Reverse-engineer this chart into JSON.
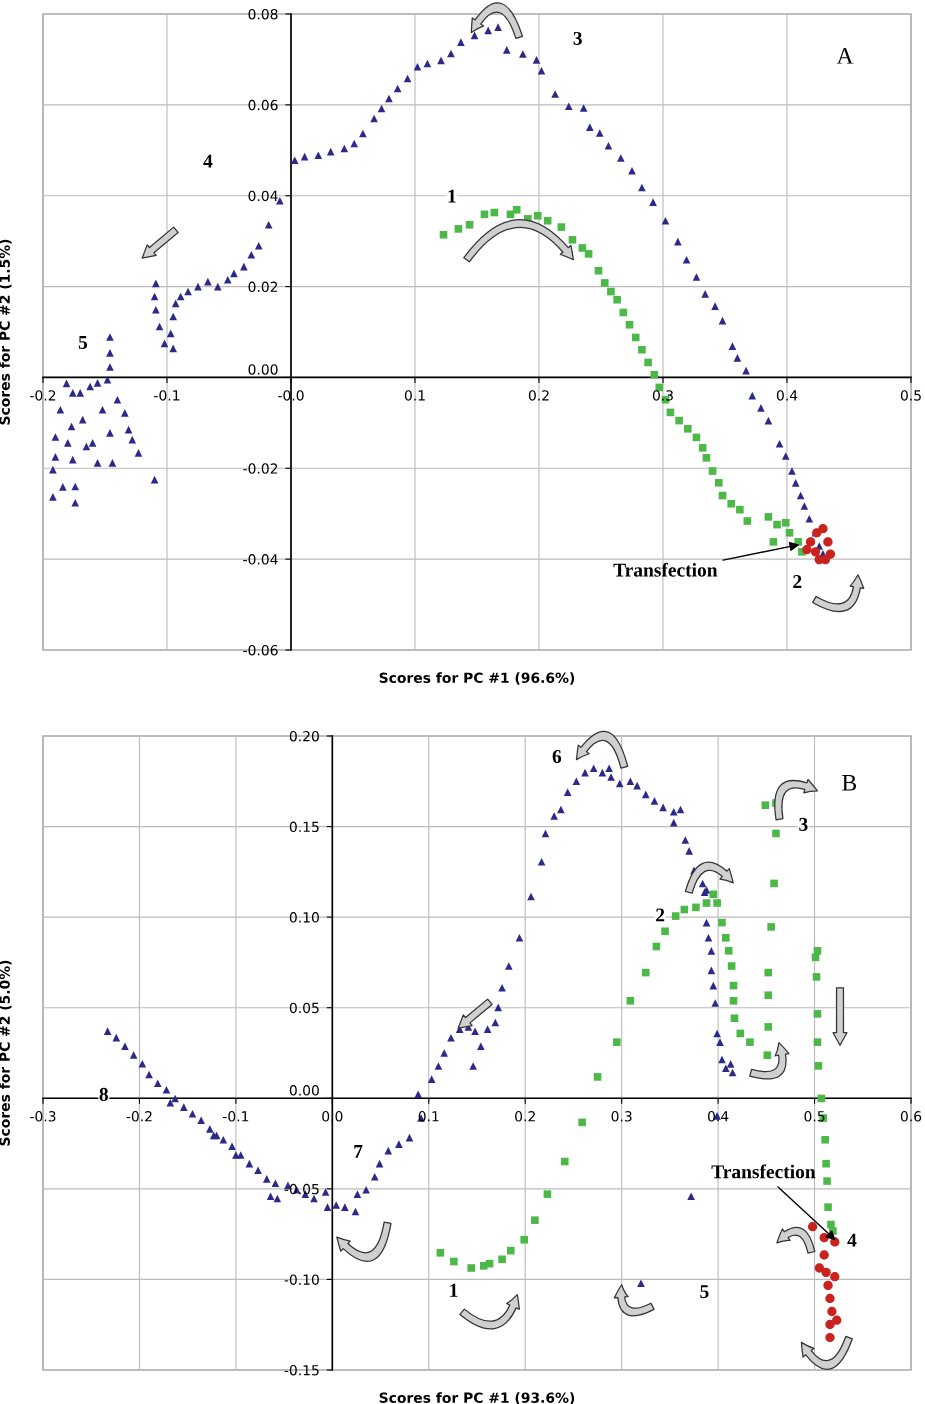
{
  "chart_data": [
    {
      "type": "scatter",
      "xlabel": "Scores for PC #1 (96.6%)",
      "ylabel": "Scores for PC #2 (1.5%)",
      "xlim": [
        -0.2,
        0.5
      ],
      "ylim": [
        -0.06,
        0.08
      ],
      "xticks": [
        {
          "value": -0.2,
          "label": "-0.2"
        },
        {
          "value": -0.1,
          "label": "-0.1"
        },
        {
          "value": 0,
          "label": "-0.0"
        },
        {
          "value": 0.1,
          "label": "0.1"
        },
        {
          "value": 0.2,
          "label": "0.2"
        },
        {
          "value": 0.3,
          "label": "0.3"
        },
        {
          "value": 0.4,
          "label": "0.4"
        },
        {
          "value": 0.5,
          "label": "0.5"
        }
      ],
      "yticks": [
        {
          "value": -0.06,
          "label": "-0.06"
        },
        {
          "value": -0.04,
          "label": "-0.04"
        },
        {
          "value": -0.02,
          "label": "-0.02"
        },
        {
          "value": 0,
          "label": "0.00"
        },
        {
          "value": 0.02,
          "label": "0.02"
        },
        {
          "value": 0.04,
          "label": "0.04"
        },
        {
          "value": 0.06,
          "label": "0.06"
        },
        {
          "value": 0.08,
          "label": "0.08"
        }
      ],
      "grid": true,
      "series": [
        {
          "marker": "triangle",
          "color": "#2b2a8a",
          "x": [
            -0.009,
            -0.018,
            -0.026,
            -0.032,
            -0.038,
            -0.046,
            -0.051,
            -0.059,
            -0.067,
            -0.075,
            -0.083,
            -0.089,
            -0.093,
            -0.095,
            -0.097,
            -0.095,
            -0.102,
            -0.106,
            -0.109,
            -0.11,
            -0.109,
            0.003,
            0.011,
            0.022,
            0.032,
            0.043,
            0.051,
            0.058,
            0.067,
            0.073,
            0.079,
            0.086,
            0.094,
            0.102,
            0.11,
            0.121,
            0.129,
            0.137,
            0.148,
            0.159,
            0.167,
            0.174,
            0.187,
            0.198,
            0.202,
            0.213,
            0.224,
            0.236,
            0.241,
            0.249,
            0.256,
            0.266,
            0.275,
            0.283,
            0.292,
            0.302,
            0.312,
            0.319,
            0.327,
            0.334,
            0.342,
            0.348,
            0.356,
            0.36,
            0.367,
            0.372,
            0.379,
            0.385,
            0.394,
            0.399,
            0.404,
            0.407,
            0.411,
            0.414,
            0.418,
            0.423,
            0.426,
            0.429,
            -0.146,
            -0.146,
            -0.146,
            -0.181,
            -0.186,
            -0.19,
            -0.192,
            -0.192,
            -0.184,
            -0.174,
            -0.174,
            -0.176,
            -0.177,
            -0.176,
            -0.17,
            -0.162,
            -0.156,
            -0.148,
            -0.16,
            -0.156,
            -0.144,
            -0.146,
            -0.152,
            -0.14,
            -0.134,
            -0.131,
            -0.128,
            -0.123,
            -0.11,
            -0.168,
            -0.165,
            -0.19,
            -0.18
          ],
          "values": [
            0.0389,
            0.0336,
            0.029,
            0.027,
            0.0244,
            0.0229,
            0.0215,
            0.02,
            0.0211,
            0.02,
            0.0189,
            0.0178,
            0.0163,
            0.0134,
            0.0097,
            0.0064,
            0.0075,
            0.0112,
            0.0149,
            0.0178,
            0.0207,
            0.0478,
            0.0486,
            0.0489,
            0.0497,
            0.0504,
            0.0515,
            0.0537,
            0.057,
            0.0592,
            0.0614,
            0.0636,
            0.0658,
            0.0684,
            0.0691,
            0.0698,
            0.0713,
            0.0738,
            0.0753,
            0.0764,
            0.0771,
            0.0721,
            0.0712,
            0.0699,
            0.0675,
            0.0624,
            0.0597,
            0.0593,
            0.0551,
            0.0538,
            0.051,
            0.0483,
            0.0455,
            0.0418,
            0.0386,
            0.0345,
            0.0299,
            0.0259,
            0.0221,
            0.0184,
            0.0157,
            0.0125,
            0.0069,
            0.0043,
            0.0015,
            -0.004,
            -0.0067,
            -0.0095,
            -0.0146,
            -0.0173,
            -0.0206,
            -0.0232,
            -0.026,
            -0.0283,
            -0.0311,
            -0.0342,
            -0.0371,
            -0.0388,
            0.0089,
            0.0054,
            0.0023,
            -0.0013,
            -0.0071,
            -0.0131,
            -0.0203,
            -0.0263,
            -0.0241,
            -0.0276,
            -0.024,
            -0.0181,
            -0.0108,
            -0.0034,
            -0.0034,
            -0.002,
            -0.0012,
            -0.0005,
            -0.0144,
            -0.0188,
            -0.0188,
            -0.0122,
            -0.0071,
            -0.0049,
            -0.0078,
            -0.0115,
            -0.0137,
            -0.0166,
            -0.0225,
            -0.0093,
            -0.0152,
            -0.0175,
            -0.0144
          ]
        },
        {
          "marker": "square",
          "color": "#4cb848",
          "x": [
            0.123,
            0.135,
            0.144,
            0.156,
            0.164,
            0.177,
            0.182,
            0.191,
            0.199,
            0.207,
            0.218,
            0.227,
            0.235,
            0.24,
            0.248,
            0.253,
            0.258,
            0.263,
            0.268,
            0.273,
            0.278,
            0.283,
            0.288,
            0.293,
            0.297,
            0.302,
            0.306,
            0.313,
            0.32,
            0.327,
            0.332,
            0.335,
            0.34,
            0.345,
            0.348,
            0.355,
            0.362,
            0.368,
            0.385,
            0.392,
            0.399,
            0.389,
            0.402,
            0.409,
            0.412
          ],
          "values": [
            0.0314,
            0.0327,
            0.0336,
            0.0359,
            0.0363,
            0.0359,
            0.0369,
            0.0349,
            0.0356,
            0.0345,
            0.0331,
            0.0303,
            0.0285,
            0.0272,
            0.0235,
            0.0208,
            0.0189,
            0.0171,
            0.0143,
            0.0116,
            0.0088,
            0.0061,
            0.0033,
            0.0006,
            -0.0022,
            -0.0049,
            -0.0077,
            -0.0095,
            -0.0113,
            -0.0132,
            -0.0155,
            -0.0177,
            -0.0206,
            -0.0232,
            -0.026,
            -0.0278,
            -0.0291,
            -0.0316,
            -0.0307,
            -0.0324,
            -0.032,
            -0.0362,
            -0.0342,
            -0.0362,
            -0.0384
          ]
        },
        {
          "marker": "circle",
          "color": "#c8231e",
          "x": [
            0.419,
            0.429,
            0.433,
            0.435,
            0.426,
            0.416,
            0.423,
            0.431,
            0.424
          ],
          "values": [
            -0.0362,
            -0.0333,
            -0.0362,
            -0.0389,
            -0.0401,
            -0.0379,
            -0.0384,
            -0.0401,
            -0.0342
          ]
        }
      ],
      "annotations": [
        "1",
        "2",
        "3",
        "4",
        "5",
        "A",
        {
          "text": "Transfection",
          "x": 0.41,
          "y": -0.0368
        }
      ]
    },
    {
      "type": "scatter",
      "xlabel": "Scores for PC #1 (93.6%)",
      "ylabel": "Scores for PC #2 (5.0%)",
      "xlim": [
        -0.3,
        0.6
      ],
      "ylim": [
        -0.15,
        0.2
      ],
      "xticks": [
        {
          "value": -0.3,
          "label": "-0.3"
        },
        {
          "value": -0.2,
          "label": "-0.2"
        },
        {
          "value": -0.1,
          "label": "-0.1"
        },
        {
          "value": 0,
          "label": "0.0"
        },
        {
          "value": 0.1,
          "label": "0.1"
        },
        {
          "value": 0.2,
          "label": "0.2"
        },
        {
          "value": 0.3,
          "label": "0.3"
        },
        {
          "value": 0.4,
          "label": "0.4"
        },
        {
          "value": 0.5,
          "label": "0.5"
        },
        {
          "value": 0.6,
          "label": "0.6"
        }
      ],
      "yticks": [
        {
          "value": -0.15,
          "label": "-0.15"
        },
        {
          "value": -0.1,
          "label": "-0.10"
        },
        {
          "value": -0.05,
          "label": "-0.05"
        },
        {
          "value": 0,
          "label": "0.00"
        },
        {
          "value": 0.05,
          "label": "0.05"
        },
        {
          "value": 0.1,
          "label": "0.10"
        },
        {
          "value": 0.15,
          "label": "0.15"
        },
        {
          "value": 0.2,
          "label": "0.20"
        }
      ],
      "grid": true,
      "series": [
        {
          "marker": "triangle",
          "color": "#2b2a8a",
          "x": [
            -0.233,
            -0.224,
            -0.215,
            -0.206,
            -0.197,
            -0.19,
            -0.181,
            -0.172,
            -0.163,
            -0.154,
            -0.145,
            -0.136,
            -0.127,
            -0.12,
            -0.113,
            -0.104,
            -0.095,
            -0.086,
            -0.077,
            -0.068,
            -0.059,
            -0.057,
            -0.046,
            -0.037,
            -0.028,
            -0.019,
            -0.007,
            -0.005,
            0.004,
            0.013,
            0.024,
            0.026,
            0.035,
            0.044,
            0.049,
            0.058,
            0.069,
            0.08,
            0.092,
            0.089,
            0.103,
            0.11,
            0.116,
            0.123,
            0.132,
            0.141,
            0.148,
            0.146,
            0.161,
            -0.168,
            -0.123,
            -0.1,
            -0.064,
            0.154,
            0.169,
            0.172,
            0.176,
            0.183,
            0.194,
            0.206,
            0.217,
            0.221,
            0.23,
            0.237,
            0.244,
            0.253,
            0.262,
            0.271,
            0.28,
            0.287,
            0.289,
            0.298,
            0.309,
            0.316,
            0.325,
            0.334,
            0.343,
            0.354,
            0.361,
            0.354,
            0.366,
            0.37,
            0.375,
            0.384,
            0.388,
            0.386,
            0.388,
            0.39,
            0.393,
            0.393,
            0.395,
            0.397,
            0.399,
            0.402,
            0.404,
            0.408,
            0.413,
            0.415,
            0.399,
            0.372,
            0.32
          ],
          "values": [
            0.0371,
            0.0335,
            0.0287,
            0.0239,
            0.0191,
            0.0131,
            0.0083,
            0.0047,
            -0.0001,
            -0.0049,
            -0.0085,
            -0.0121,
            -0.0169,
            -0.0205,
            -0.0229,
            -0.0265,
            -0.0313,
            -0.0361,
            -0.0397,
            -0.0445,
            -0.0469,
            -0.0553,
            -0.0481,
            -0.0505,
            -0.0529,
            -0.0553,
            -0.0517,
            -0.0601,
            -0.0589,
            -0.0601,
            -0.0625,
            -0.0529,
            -0.0505,
            -0.0433,
            -0.0361,
            -0.0289,
            -0.0253,
            -0.0217,
            -0.0109,
            0.0022,
            0.0106,
            0.0178,
            0.025,
            0.0334,
            0.0382,
            0.0394,
            0.037,
            0.0178,
            0.0382,
            -0.0025,
            -0.0205,
            -0.0313,
            -0.0541,
            0.0287,
            0.0418,
            0.0502,
            0.061,
            0.073,
            0.0886,
            0.1114,
            0.1306,
            0.1462,
            0.1558,
            0.1594,
            0.169,
            0.175,
            0.1798,
            0.1822,
            0.1798,
            0.1822,
            0.1774,
            0.1738,
            0.175,
            0.1726,
            0.1678,
            0.1642,
            0.1606,
            0.1582,
            0.1594,
            0.1522,
            0.1426,
            0.1366,
            0.1258,
            0.1186,
            0.115,
            0.1138,
            0.097,
            0.0886,
            0.0814,
            0.0706,
            0.0622,
            0.0526,
            0.0358,
            0.031,
            0.0214,
            0.0166,
            0.019,
            0.0142,
            -0.0097,
            -0.0541,
            -0.1021
          ]
        },
        {
          "marker": "square",
          "color": "#4cb848",
          "x": [
            0.112,
            0.126,
            0.144,
            0.157,
            0.163,
            0.176,
            0.185,
            0.199,
            0.21,
            0.223,
            0.241,
            0.259,
            0.275,
            0.295,
            0.309,
            0.325,
            0.336,
            0.345,
            0.356,
            0.365,
            0.377,
            0.388,
            0.395,
            0.399,
            0.404,
            0.408,
            0.411,
            0.414,
            0.416,
            0.416,
            0.417,
            0.423,
            0.433,
            0.449,
            0.46,
            0.46,
            0.458,
            0.455,
            0.452,
            0.452,
            0.452,
            0.451,
            0.503,
            0.501,
            0.502,
            0.503,
            0.503,
            0.504,
            0.507,
            0.509,
            0.511,
            0.512,
            0.513,
            0.514,
            0.517,
            0.519
          ],
          "values": [
            -0.0853,
            -0.0901,
            -0.0937,
            -0.0925,
            -0.0913,
            -0.0889,
            -0.0841,
            -0.0781,
            -0.0673,
            -0.0529,
            -0.0349,
            -0.0133,
            0.0118,
            0.031,
            0.0538,
            0.0694,
            0.0838,
            0.0922,
            0.1006,
            0.1042,
            0.1054,
            0.1078,
            0.1126,
            0.1078,
            0.097,
            0.0886,
            0.0814,
            0.073,
            0.0622,
            0.0538,
            0.0442,
            0.0358,
            0.031,
            0.1618,
            0.163,
            0.1462,
            0.1186,
            0.0946,
            0.0694,
            0.0569,
            0.0394,
            0.0238,
            0.0814,
            0.0778,
            0.067,
            0.0466,
            0.031,
            0.0179,
            -0.0001,
            -0.0109,
            -0.0229,
            -0.0361,
            -0.0457,
            -0.0601,
            -0.0697,
            -0.0733
          ]
        },
        {
          "marker": "circle",
          "color": "#c8231e",
          "x": [
            0.498,
            0.51,
            0.521,
            0.51,
            0.512,
            0.514,
            0.516,
            0.518,
            0.516,
            0.516,
            0.521,
            0.505,
            0.523
          ],
          "values": [
            -0.0709,
            -0.0769,
            -0.0793,
            -0.0865,
            -0.0961,
            -0.1033,
            -0.1105,
            -0.1177,
            -0.1249,
            -0.1321,
            -0.0985,
            -0.0937,
            -0.1225
          ]
        }
      ],
      "annotations": [
        "1",
        "2",
        "3",
        "4",
        "5",
        "6",
        "7",
        "8",
        "B",
        {
          "text": "Transfection",
          "x": 0.522,
          "y": -0.0784
        }
      ]
    }
  ]
}
